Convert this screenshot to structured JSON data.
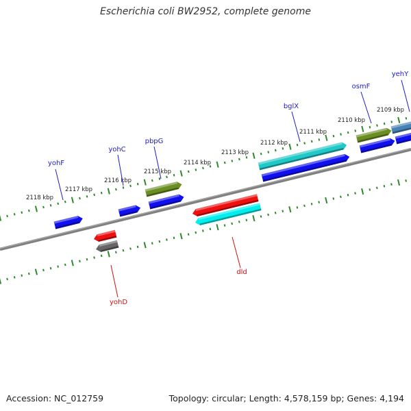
{
  "title": "Escherichia coli BW2952, complete genome",
  "footer": {
    "accession": "Accession: NC_012759",
    "summary": "Topology: circular; Length: 4,578,159 bp; Genes: 4,194"
  },
  "colors": {
    "backbone": "#808080",
    "ticks": "#2a8a2a",
    "label_forward": "#1a1acc",
    "label_reverse": "#cc1111"
  },
  "scale_labels": [
    "2118 kbp",
    "2117 kbp",
    "2116 kbp",
    "2115 kbp",
    "2114 kbp",
    "2113 kbp",
    "2112 kbp",
    "2111 kbp",
    "2110 kbp",
    "2109 kbp"
  ],
  "genes": [
    {
      "id": "yohF",
      "label": "yohF",
      "strand": "+",
      "color": "#1010ee"
    },
    {
      "id": "yohC",
      "label": "yohC",
      "strand": "+",
      "color": "#1010ee"
    },
    {
      "id": "pbpG",
      "label": "pbpG",
      "strand": "+",
      "color": "#6b8e23"
    },
    {
      "id": "pbpG2",
      "label": "",
      "strand": "+",
      "color": "#1010ee"
    },
    {
      "id": "bglX",
      "label": "bglX",
      "strand": "+",
      "color": "#20c8c8"
    },
    {
      "id": "bglX2",
      "label": "",
      "strand": "+",
      "color": "#1010ee"
    },
    {
      "id": "osmF",
      "label": "osmF",
      "strand": "+",
      "color": "#6b8e23"
    },
    {
      "id": "osmF2",
      "label": "",
      "strand": "+",
      "color": "#1010ee"
    },
    {
      "id": "yehY",
      "label": "yehY",
      "strand": "+",
      "color": "#4682b4"
    },
    {
      "id": "yehY2",
      "label": "",
      "strand": "+",
      "color": "#1010ee"
    },
    {
      "id": "yohD",
      "label": "yohD",
      "strand": "-",
      "color": "#ee1010"
    },
    {
      "id": "yohD2",
      "label": "",
      "strand": "-",
      "color": "#666666"
    },
    {
      "id": "dld",
      "label": "dld",
      "strand": "-",
      "color": "#ee1010"
    },
    {
      "id": "dld2",
      "label": "",
      "strand": "-",
      "color": "#00eeee"
    }
  ]
}
